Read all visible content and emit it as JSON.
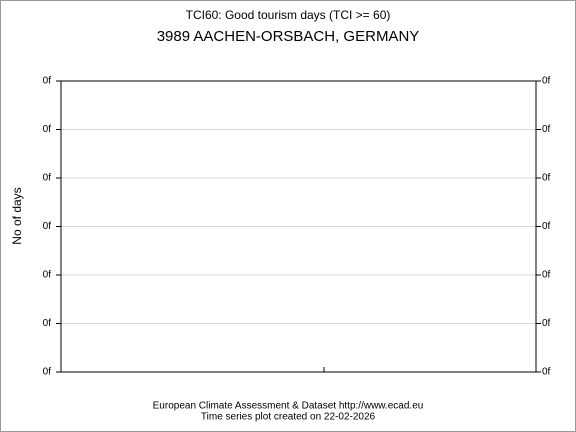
{
  "chart_data": {
    "type": "line",
    "title": "TCI60: Good tourism days (TCI >= 60)",
    "subtitle": "3989 AACHEN-ORSBACH, GERMANY",
    "y_label": "No of days",
    "ylim": [
      0,
      6
    ],
    "yticks": [
      {
        "value": 0,
        "label": "0f"
      },
      {
        "value": 1,
        "label": "0f"
      },
      {
        "value": 2,
        "label": "0f"
      },
      {
        "value": 3,
        "label": "0f"
      },
      {
        "value": 4,
        "label": "0f"
      },
      {
        "value": 5,
        "label": "0f"
      },
      {
        "value": 6,
        "label": "0f"
      }
    ],
    "grid": true,
    "footer": [
      "European Climate Assessment & Dataset  http://www.ecad.eu",
      "Time series plot created on 22-02-2026"
    ]
  }
}
